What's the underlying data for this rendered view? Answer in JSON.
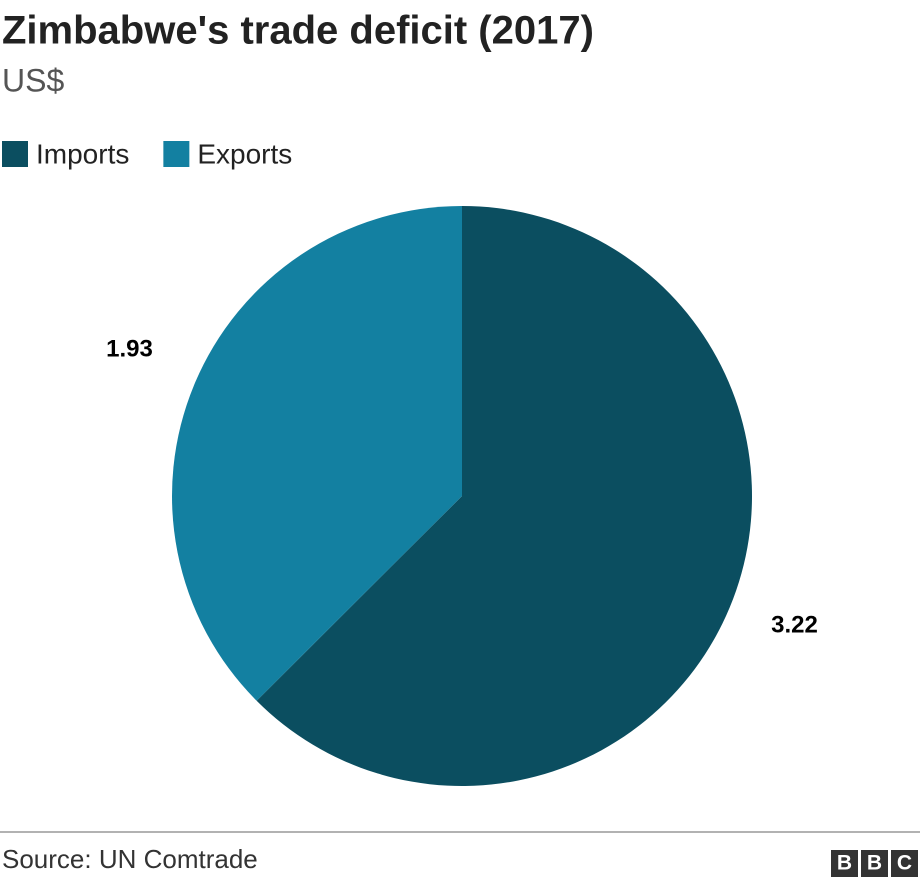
{
  "chart_data": {
    "type": "pie",
    "title": "Zimbabwe's trade deficit (2017)",
    "subtitle": "US$",
    "categories": [
      "Imports",
      "Exports"
    ],
    "values": [
      3.22,
      1.93
    ],
    "colors": [
      "#0b4e60",
      "#1380a1"
    ],
    "legend": "top-left",
    "source": "Source: UN Comtrade",
    "logo": [
      "B",
      "B",
      "C"
    ]
  }
}
